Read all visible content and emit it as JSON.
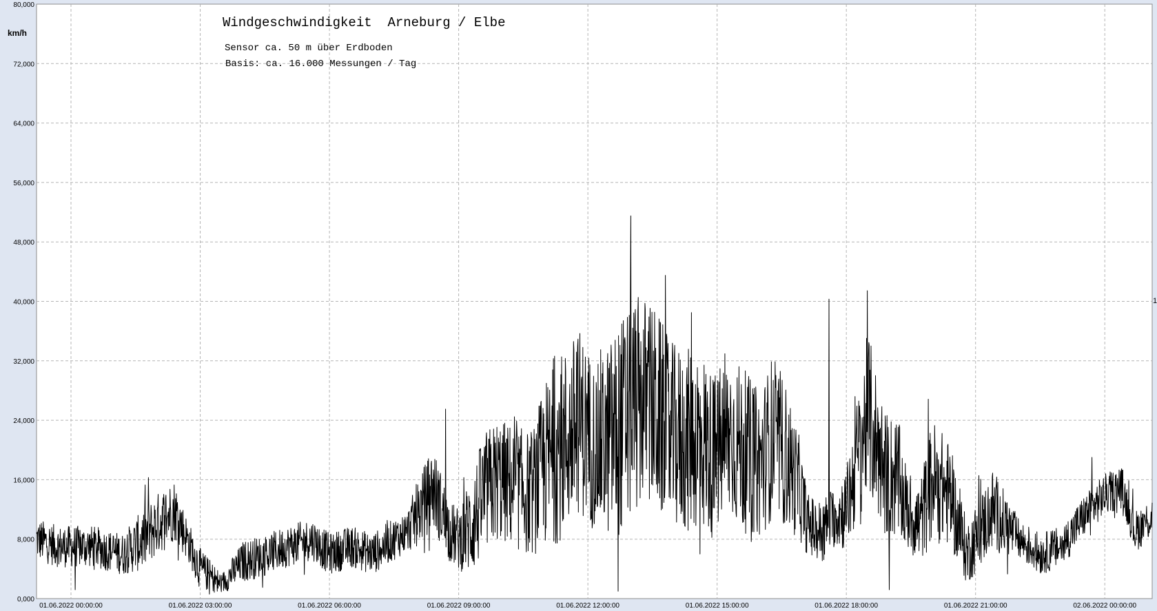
{
  "chart_data": {
    "type": "line",
    "title": "Windgeschwindigkeit  Arneburg / Elbe",
    "subtitle_lines": [
      "Sensor ca. 50 m über Erdboden",
      "Basis: ca. 16.000 Messungen / Tag"
    ],
    "ylabel": "km/h",
    "xlabel": "",
    "ylim": [
      0,
      80
    ],
    "yticks": [
      0,
      8,
      16,
      24,
      32,
      40,
      48,
      56,
      64,
      72,
      80
    ],
    "ytick_labels": [
      "0,000",
      "8,000",
      "16,000",
      "24,000",
      "32,000",
      "40,000",
      "48,000",
      "56,000",
      "64,000",
      "72,000",
      "80,000"
    ],
    "xlim_hours": [
      -0.8,
      25.1
    ],
    "xticks_hours": [
      0,
      3,
      6,
      9,
      12,
      15,
      18,
      21,
      24
    ],
    "xtick_labels": [
      "01.06.2022  00:00:00",
      "01.06.2022  03:00:00",
      "01.06.2022  06:00:00",
      "01.06.2022  09:00:00",
      "01.06.2022  12:00:00",
      "01.06.2022  15:00:00",
      "01.06.2022  18:00:00",
      "01.06.2022  21:00:00",
      "02.06.2022  00:00:00"
    ],
    "right_marker": "1",
    "grid": true,
    "legend": "none",
    "series": [
      {
        "color": "#000000",
        "x_hours": [
          -0.8,
          -0.3,
          0.5,
          1.2,
          1.7,
          2.0,
          2.4,
          2.7,
          3.0,
          3.5,
          4.0,
          4.6,
          5.0,
          5.6,
          6.0,
          6.5,
          7.0,
          7.5,
          7.8,
          8.0,
          8.4,
          8.8,
          9.0,
          9.3,
          9.6,
          9.9,
          10.3,
          10.7,
          11.0,
          11.3,
          11.6,
          11.8,
          12.2,
          12.6,
          13.0,
          13.3,
          13.6,
          13.9,
          14.3,
          14.6,
          14.9,
          15.3,
          15.6,
          16.0,
          16.3,
          16.6,
          16.9,
          17.1,
          17.4,
          17.7,
          18.0,
          18.5,
          18.9,
          19.2,
          19.4,
          19.7,
          20.0,
          20.4,
          20.8,
          21.4,
          22.0,
          22.5,
          23.0,
          23.5,
          24.0,
          24.4,
          24.7,
          25.1
        ],
        "mean_kmh": [
          8,
          7,
          7,
          6,
          8,
          10,
          12,
          8,
          4,
          2,
          5,
          6,
          7,
          8,
          6,
          7,
          6,
          8,
          9,
          11,
          15,
          9,
          8,
          10,
          14,
          16,
          15,
          14,
          18,
          20,
          22,
          24,
          20,
          22,
          25,
          27,
          25,
          22,
          21,
          22,
          19,
          22,
          20,
          18,
          22,
          19,
          15,
          10,
          9,
          11,
          12,
          25,
          17,
          16,
          12,
          10,
          16,
          14,
          6,
          12,
          8,
          6,
          7,
          11,
          14,
          15,
          9,
          11
        ],
        "amplitude_kmh": [
          2,
          2,
          2,
          2,
          3,
          3,
          3,
          2,
          2,
          1,
          2,
          2,
          2,
          2,
          2,
          2,
          2,
          2,
          2,
          3,
          4,
          3,
          3,
          5,
          6,
          6,
          6,
          6,
          8,
          9,
          9,
          9,
          8,
          10,
          11,
          10,
          10,
          9,
          9,
          9,
          8,
          8,
          8,
          7,
          8,
          7,
          5,
          3,
          3,
          3,
          4,
          8,
          6,
          6,
          4,
          4,
          6,
          5,
          3,
          4,
          2,
          2,
          2,
          2,
          2,
          2,
          2,
          2
        ],
        "spikes": [
          {
            "x_hours": 13.0,
            "y_kmh": 51.5
          },
          {
            "x_hours": 13.8,
            "y_kmh": 43.5
          },
          {
            "x_hours": 17.6,
            "y_kmh": 40.3
          },
          {
            "x_hours": 12.7,
            "y_kmh": 1.0
          },
          {
            "x_hours": 14.4,
            "y_kmh": 38.5
          },
          {
            "x_hours": 14.6,
            "y_kmh": 6.0
          },
          {
            "x_hours": 11.2,
            "y_kmh": 32.3
          },
          {
            "x_hours": 12.3,
            "y_kmh": 33.5
          },
          {
            "x_hours": 18.2,
            "y_kmh": 27.2
          },
          {
            "x_hours": 8.7,
            "y_kmh": 25.5
          },
          {
            "x_hours": 1.8,
            "y_kmh": 16.3
          },
          {
            "x_hours": 23.7,
            "y_kmh": 19.0
          },
          {
            "x_hours": 19.0,
            "y_kmh": 1.2
          },
          {
            "x_hours": 3.4,
            "y_kmh": 1.0
          },
          {
            "x_hours": 0.1,
            "y_kmh": 1.2
          }
        ]
      }
    ]
  }
}
